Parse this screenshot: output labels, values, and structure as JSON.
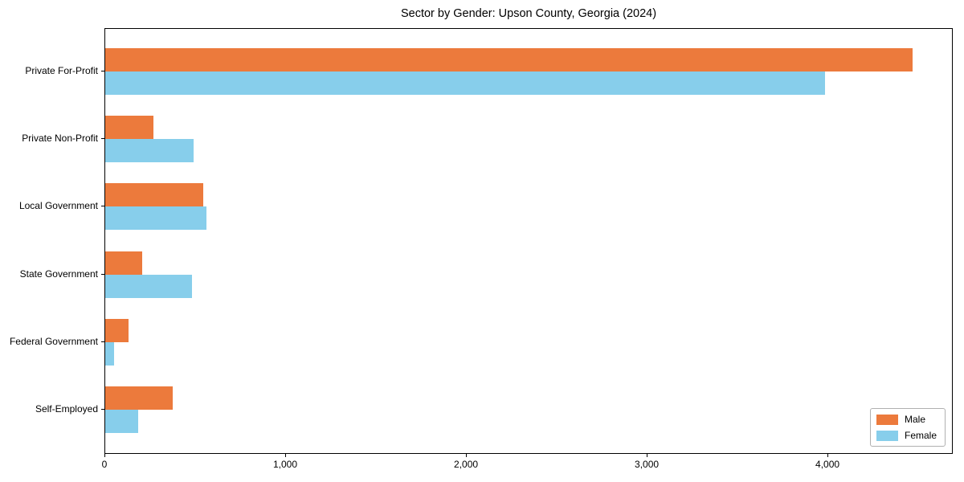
{
  "chart_data": {
    "type": "bar",
    "orientation": "horizontal",
    "title": "Sector by Gender: Upson County, Georgia (2024)",
    "categories": [
      "Private For-Profit",
      "Private Non-Profit",
      "Local Government",
      "State Government",
      "Federal Government",
      "Self-Employed"
    ],
    "series": [
      {
        "name": "Male",
        "color": "#ec7a3c",
        "values": [
          4465,
          265,
          540,
          205,
          130,
          375
        ]
      },
      {
        "name": "Female",
        "color": "#87ceeb",
        "values": [
          3980,
          490,
          560,
          480,
          50,
          180
        ]
      }
    ],
    "xlabel": "",
    "ylabel": "",
    "xlim": [
      0,
      4693
    ],
    "xticks": [
      0,
      1000,
      2000,
      3000,
      4000
    ],
    "xtick_labels": [
      "0",
      "1,000",
      "2,000",
      "3,000",
      "4,000"
    ],
    "legend": {
      "position": "lower right",
      "entries": [
        "Male",
        "Female"
      ]
    },
    "grid": false,
    "background_color": "#ffffff",
    "spine_color": "#000000"
  }
}
